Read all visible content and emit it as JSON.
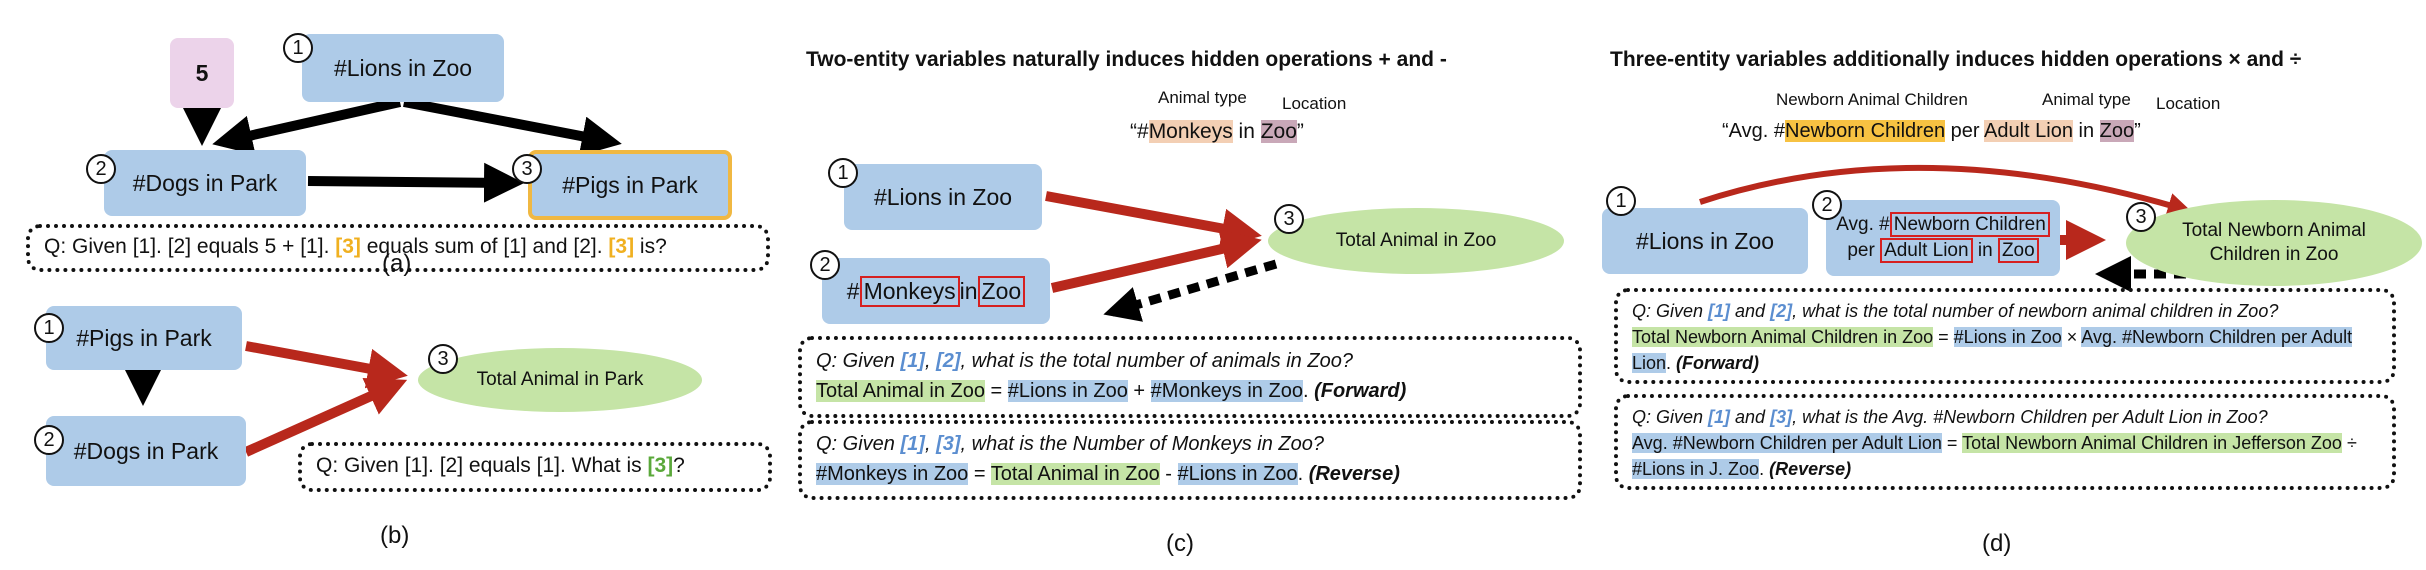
{
  "colors": {
    "node_blue": "#aecbe8",
    "node_pink": "#ecd3ea",
    "node_green": "#c5e4a6",
    "highlight_gold": "#f0b842",
    "arrow_red": "#b8281c",
    "arrow_black": "#000000"
  },
  "panel_a": {
    "const_value": "5",
    "n1": {
      "num": "1",
      "label": "#Lions in Zoo"
    },
    "n2": {
      "num": "2",
      "label": "#Dogs in Park"
    },
    "n3": {
      "num": "3",
      "label": "#Pigs in Park"
    },
    "q": {
      "p1": "Q: Given [1]. [2] equals 5 + [1]. ",
      "ref1": "[3]",
      "p2": " equals sum of [1] and [2]. ",
      "ref2": "[3]",
      "p3": " is?"
    },
    "caption": "(a)"
  },
  "panel_b": {
    "n1": {
      "num": "1",
      "label": "#Pigs in Park"
    },
    "n2": {
      "num": "2",
      "label": "#Dogs in Park"
    },
    "n3": {
      "num": "3",
      "label": "Total Animal in Park"
    },
    "q": {
      "p1": "Q: Given [1]. [2] equals [1]. What is ",
      "ref": "[3]",
      "p2": "?"
    },
    "caption": "(b)"
  },
  "panel_c": {
    "header": "Two-entity variables naturally induces hidden operations + and -",
    "type_label": "Animal type",
    "loc_label": "Location",
    "phrase": {
      "open": "“#",
      "entity": "Monkeys",
      "mid": " in ",
      "loc": "Zoo",
      "close": "”"
    },
    "n1": {
      "num": "1",
      "label": "#Lions in Zoo"
    },
    "n2": {
      "num": "2",
      "pre": "#",
      "entity": "Monkeys",
      "mid": " in ",
      "loc": "Zoo"
    },
    "n3": {
      "num": "3",
      "label": "Total Animal in Zoo"
    },
    "q1": {
      "pre": "Q: Given ",
      "r1": "[1]",
      "sep": ", ",
      "r2": "[2]",
      "question": ", what is the total number of animals in Zoo?",
      "t1": "Total Animal in Zoo",
      "eq": " = ",
      "t2": "#Lions in Zoo",
      "op": " + ",
      "t3": "#Monkeys in Zoo",
      "end": ". ",
      "tag": "(Forward)"
    },
    "q2": {
      "pre": "Q: Given ",
      "r1": "[1]",
      "sep": ", ",
      "r2": "[3]",
      "question": ", what is the Number of Monkeys in Zoo?",
      "t1": "#Monkeys in Zoo",
      "eq": " = ",
      "t2": "Total Animal in Zoo",
      "op": " - ",
      "t3": "#Lions in Zoo",
      "end": ". ",
      "tag": "(Reverse)"
    },
    "caption": "(c)"
  },
  "panel_d": {
    "header": "Three-entity variables additionally induces hidden operations × and ÷",
    "child_label": "Newborn Animal Children",
    "type_label": "Animal type",
    "loc_label": "Location",
    "phrase": {
      "open": "“Avg. #",
      "child": "Newborn Children",
      "per": " per ",
      "type": "Adult Lion",
      "in": " in ",
      "loc": "Zoo",
      "close": "”"
    },
    "n1": {
      "num": "1",
      "label": "#Lions in Zoo"
    },
    "n2": {
      "num": "2",
      "line1_pre": "Avg. #",
      "child": "Newborn Children",
      "per": "per ",
      "type": "Adult Lion",
      "in": " in ",
      "loc": "Zoo"
    },
    "n3": {
      "num": "3",
      "label": "Total Newborn Animal Children in Zoo"
    },
    "q1": {
      "pre": "Q: Given ",
      "r1": "[1]",
      "and": " and ",
      "r2": "[2]",
      "question": ", what is the total number of newborn animal children in Zoo?",
      "t1": "Total Newborn Animal Children in Zoo",
      "eq": " = ",
      "t2": "#Lions in  Zoo",
      "op": " × ",
      "t3": "Avg. #Newborn Children per Adult Lion",
      "end": ". ",
      "tag": "(Forward)"
    },
    "q2": {
      "pre": "Q: Given ",
      "r1": "[1]",
      "and": " and ",
      "r2": "[3]",
      "question": ", what is the Avg. #Newborn Children per Adult Lion in Zoo?",
      "t1": "Avg. #Newborn Children per Adult Lion",
      "eq": " = ",
      "t2": "Total Newborn Animal Children in Jefferson Zoo",
      "op": " ÷ ",
      "t3": "#Lions in J. Zoo",
      "end": ". ",
      "tag": "(Reverse)"
    },
    "caption": "(d)"
  }
}
